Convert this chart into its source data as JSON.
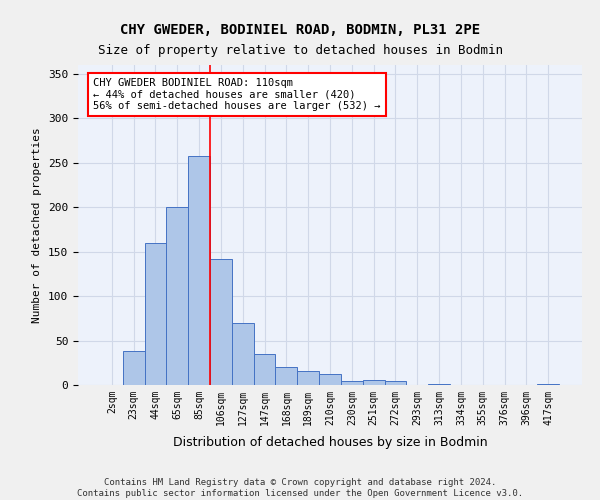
{
  "title_line1": "CHY GWEDER, BODINIEL ROAD, BODMIN, PL31 2PE",
  "title_line2": "Size of property relative to detached houses in Bodmin",
  "xlabel": "Distribution of detached houses by size in Bodmin",
  "ylabel": "Number of detached properties",
  "categories": [
    "2sqm",
    "23sqm",
    "44sqm",
    "65sqm",
    "85sqm",
    "106sqm",
    "127sqm",
    "147sqm",
    "168sqm",
    "189sqm",
    "210sqm",
    "230sqm",
    "251sqm",
    "272sqm",
    "293sqm",
    "313sqm",
    "334sqm",
    "355sqm",
    "376sqm",
    "396sqm",
    "417sqm"
  ],
  "values": [
    0,
    38,
    160,
    200,
    258,
    142,
    70,
    35,
    20,
    16,
    12,
    5,
    6,
    4,
    0,
    1,
    0,
    0,
    0,
    0,
    1
  ],
  "bar_color": "#aec6e8",
  "bar_edge_color": "#4472c4",
  "bar_width": 1.0,
  "ylim": [
    0,
    360
  ],
  "yticks": [
    0,
    50,
    100,
    150,
    200,
    250,
    300,
    350
  ],
  "grid_color": "#d0d8e8",
  "background_color": "#edf2fb",
  "annotation_text": "CHY GWEDER BODINIEL ROAD: 110sqm\n← 44% of detached houses are smaller (420)\n56% of semi-detached houses are larger (532) →",
  "annotation_box_color": "white",
  "annotation_box_edge": "red",
  "footer_text": "Contains HM Land Registry data © Crown copyright and database right 2024.\nContains public sector information licensed under the Open Government Licence v3.0.",
  "figure_bg": "#f0f0f0",
  "red_line_index": 5
}
